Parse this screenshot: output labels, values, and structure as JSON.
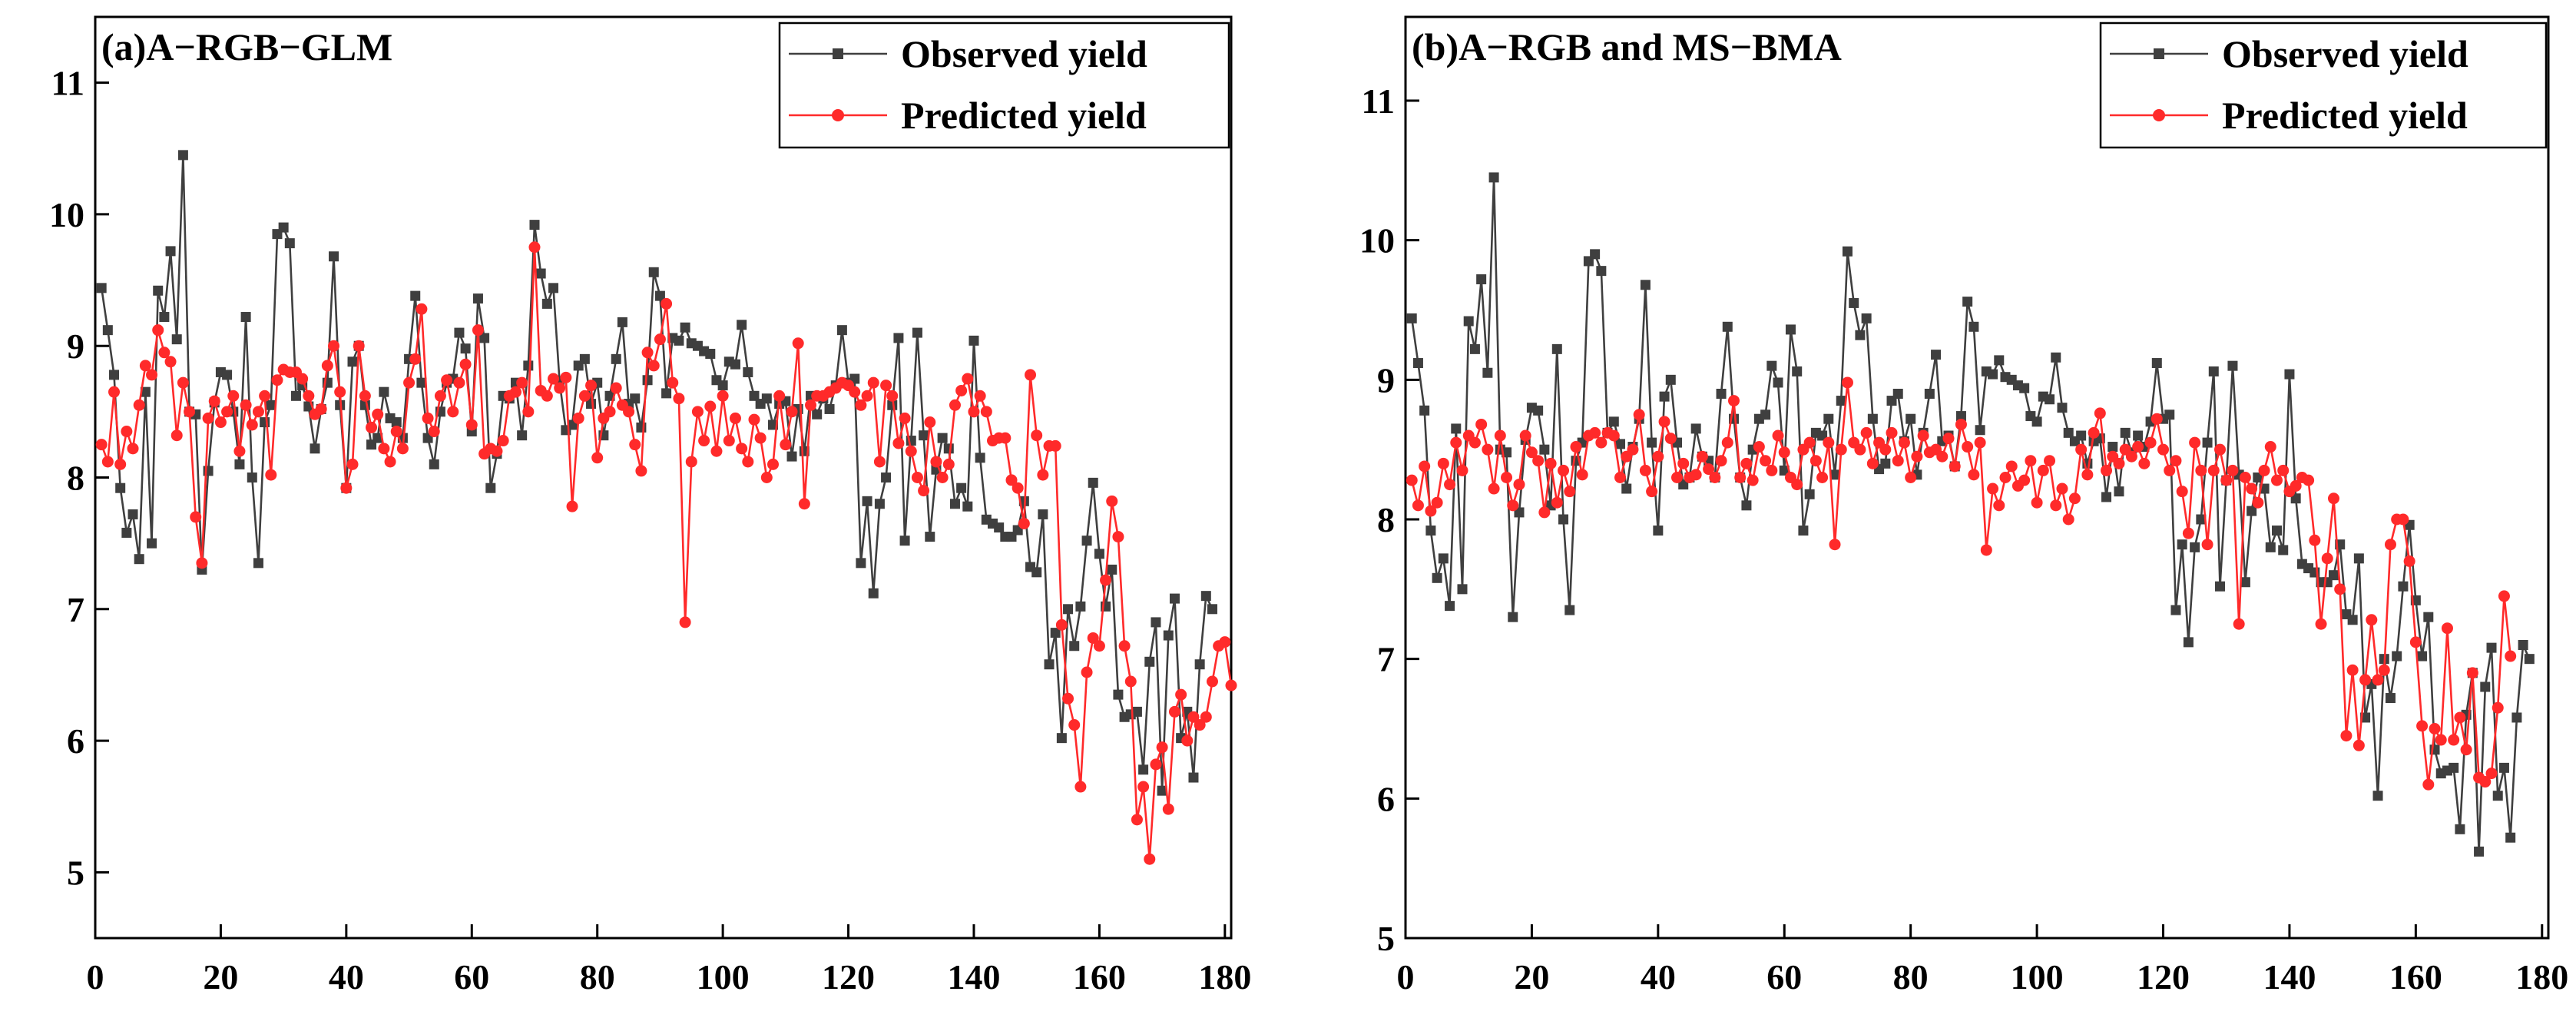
{
  "colors": {
    "observed": "#3f3f3f",
    "predicted": "#ff2a2a",
    "axis": "#000000"
  },
  "chart_data": [
    {
      "type": "line",
      "title": "(a)A−RGB−GLM",
      "xlabel": "",
      "ylabel": "",
      "xlim": [
        0,
        181
      ],
      "ylim": [
        4.5,
        11.5
      ],
      "xticks": [
        0,
        20,
        40,
        60,
        80,
        100,
        120,
        140,
        160,
        180
      ],
      "yticks": [
        5,
        6,
        7,
        8,
        9,
        10,
        11
      ],
      "legend_position": "top-right",
      "series": [
        {
          "name": "Observed yield",
          "marker": "square",
          "values": [
            9.44,
            9.12,
            8.78,
            7.92,
            7.58,
            7.72,
            7.38,
            8.65,
            7.5,
            9.42,
            9.22,
            9.72,
            9.05,
            10.45,
            8.5,
            8.48,
            7.3,
            8.05,
            8.57,
            8.8,
            8.78,
            8.5,
            8.1,
            9.22,
            8.0,
            7.35,
            8.42,
            8.55,
            9.85,
            9.9,
            9.78,
            8.62,
            8.7,
            8.54,
            8.22,
            8.52,
            8.72,
            9.68,
            8.55,
            7.92,
            8.88,
            9.0,
            8.55,
            8.25,
            8.3,
            8.65,
            8.45,
            8.42,
            8.3,
            8.9,
            9.38,
            8.72,
            8.3,
            8.1,
            8.5,
            8.72,
            8.75,
            9.1,
            8.98,
            8.35,
            9.36,
            9.06,
            7.92,
            8.18,
            8.62,
            8.6,
            8.72,
            8.32,
            8.85,
            9.92,
            9.55,
            9.32,
            9.44,
            8.72,
            8.36,
            8.4,
            8.85,
            8.9,
            8.56,
            8.72,
            8.32,
            8.62,
            8.9,
            9.18,
            8.56,
            8.6,
            8.38,
            8.74,
            9.56,
            9.38,
            8.64,
            9.06,
            9.04,
            9.14,
            9.02,
            9.0,
            8.96,
            8.94,
            8.74,
            8.7,
            8.88,
            8.86,
            9.16,
            8.8,
            8.62,
            8.56,
            8.6,
            8.4,
            8.56,
            8.58,
            8.16,
            8.52,
            8.2,
            8.62,
            8.48,
            8.6,
            8.52,
            8.7,
            9.12,
            8.72,
            8.75,
            7.35,
            7.82,
            7.12,
            7.8,
            8.0,
            8.55,
            9.06,
            7.52,
            8.28,
            9.1,
            8.32,
            7.55,
            8.06,
            8.3,
            8.22,
            7.8,
            7.92,
            7.78,
            9.04,
            8.15,
            7.68,
            7.65,
            7.62,
            7.55,
            7.55,
            7.6,
            7.82,
            7.32,
            7.28,
            7.72,
            6.58,
            6.82,
            6.02,
            7.0,
            6.72,
            7.02,
            7.52,
            7.96,
            7.42,
            7.02,
            7.3,
            6.35,
            6.18,
            6.2,
            6.22,
            5.78,
            6.6,
            6.9,
            5.62,
            6.8,
            7.08,
            6.02,
            6.22,
            5.72,
            6.58,
            7.1,
            7.0
          ]
        },
        {
          "name": "Predicted yield",
          "marker": "circle",
          "values": [
            8.25,
            8.12,
            8.65,
            8.1,
            8.35,
            8.22,
            8.55,
            8.85,
            8.78,
            9.12,
            8.95,
            8.88,
            8.32,
            8.72,
            8.5,
            7.7,
            7.35,
            8.45,
            8.58,
            8.42,
            8.5,
            8.62,
            8.2,
            8.55,
            8.4,
            8.5,
            8.62,
            8.02,
            8.74,
            8.82,
            8.8,
            8.8,
            8.75,
            8.62,
            8.48,
            8.52,
            8.85,
            9.0,
            8.65,
            7.92,
            8.1,
            9.0,
            8.62,
            8.38,
            8.48,
            8.22,
            8.12,
            8.35,
            8.22,
            8.72,
            8.9,
            9.28,
            8.45,
            8.35,
            8.62,
            8.74,
            8.5,
            8.72,
            8.86,
            8.4,
            9.12,
            8.18,
            8.22,
            8.2,
            8.28,
            8.62,
            8.65,
            8.72,
            8.5,
            9.75,
            8.66,
            8.62,
            8.75,
            8.68,
            8.76,
            7.78,
            8.45,
            8.62,
            8.7,
            8.15,
            8.45,
            8.5,
            8.68,
            8.55,
            8.5,
            8.25,
            8.05,
            8.95,
            8.85,
            9.05,
            9.32,
            8.72,
            8.6,
            6.9,
            8.12,
            8.5,
            8.28,
            8.54,
            8.2,
            8.62,
            8.28,
            8.45,
            8.22,
            8.12,
            8.44,
            8.3,
            8.0,
            8.1,
            8.62,
            8.25,
            8.5,
            9.02,
            7.8,
            8.55,
            8.62,
            8.62,
            8.65,
            8.68,
            8.72,
            8.7,
            8.65,
            8.55,
            8.62,
            8.72,
            8.12,
            8.7,
            8.62,
            8.26,
            8.45,
            8.2,
            8.0,
            7.9,
            8.42,
            8.12,
            8.0,
            8.1,
            8.55,
            8.66,
            8.75,
            8.5,
            8.62,
            8.5,
            8.28,
            8.3,
            8.3,
            7.98,
            7.92,
            7.65,
            8.78,
            8.32,
            8.02,
            8.24,
            8.24,
            6.88,
            6.32,
            6.12,
            5.65,
            6.52,
            6.78,
            6.72,
            7.22,
            7.82,
            7.55,
            6.72,
            6.45,
            5.4,
            5.65,
            5.1,
            5.82,
            5.95,
            5.48,
            6.22,
            6.35,
            6.0,
            6.18,
            6.12,
            6.18,
            6.45,
            6.72,
            6.75,
            6.42
          ]
        }
      ]
    },
    {
      "type": "line",
      "title": "(b)A−RGB and MS−BMA",
      "xlabel": "",
      "ylabel": "",
      "xlim": [
        0,
        181
      ],
      "ylim": [
        5,
        11.6
      ],
      "xticks": [
        0,
        20,
        40,
        60,
        80,
        100,
        120,
        140,
        160,
        180
      ],
      "yticks": [
        5,
        6,
        7,
        8,
        9,
        10,
        11
      ],
      "legend_position": "top-right",
      "series": [
        {
          "name": "Observed yield",
          "marker": "square",
          "values": [
            9.44,
            9.12,
            8.78,
            7.92,
            7.58,
            7.72,
            7.38,
            8.65,
            7.5,
            9.42,
            9.22,
            9.72,
            9.05,
            10.45,
            8.5,
            8.48,
            7.3,
            8.05,
            8.57,
            8.8,
            8.78,
            8.5,
            8.1,
            9.22,
            8.0,
            7.35,
            8.42,
            8.55,
            9.85,
            9.9,
            9.78,
            8.62,
            8.7,
            8.54,
            8.22,
            8.52,
            8.72,
            9.68,
            8.55,
            7.92,
            8.88,
            9.0,
            8.55,
            8.25,
            8.3,
            8.65,
            8.45,
            8.42,
            8.3,
            8.9,
            9.38,
            8.72,
            8.3,
            8.1,
            8.5,
            8.72,
            8.75,
            9.1,
            8.98,
            8.35,
            9.36,
            9.06,
            7.92,
            8.18,
            8.62,
            8.6,
            8.72,
            8.32,
            8.85,
            9.92,
            9.55,
            9.32,
            9.44,
            8.72,
            8.36,
            8.4,
            8.85,
            8.9,
            8.56,
            8.72,
            8.32,
            8.62,
            8.9,
            9.18,
            8.56,
            8.6,
            8.38,
            8.74,
            9.56,
            9.38,
            8.64,
            9.06,
            9.04,
            9.14,
            9.02,
            9.0,
            8.96,
            8.94,
            8.74,
            8.7,
            8.88,
            8.86,
            9.16,
            8.8,
            8.62,
            8.56,
            8.6,
            8.4,
            8.56,
            8.58,
            8.16,
            8.52,
            8.2,
            8.62,
            8.48,
            8.6,
            8.52,
            8.7,
            9.12,
            8.72,
            8.75,
            7.35,
            7.82,
            7.12,
            7.8,
            8.0,
            8.55,
            9.06,
            7.52,
            8.28,
            9.1,
            8.32,
            7.55,
            8.06,
            8.3,
            8.22,
            7.8,
            7.92,
            7.78,
            9.04,
            8.15,
            7.68,
            7.65,
            7.62,
            7.55,
            7.55,
            7.6,
            7.82,
            7.32,
            7.28,
            7.72,
            6.58,
            6.82,
            6.02,
            7.0,
            6.72,
            7.02,
            7.52,
            7.96,
            7.42,
            7.02,
            7.3,
            6.35,
            6.18,
            6.2,
            6.22,
            5.78,
            6.6,
            6.9,
            5.62,
            6.8,
            7.08,
            6.02,
            6.22,
            5.72,
            6.58,
            7.1,
            7.0
          ]
        },
        {
          "name": "Predicted yield",
          "marker": "circle",
          "values": [
            8.28,
            8.1,
            8.38,
            8.06,
            8.12,
            8.4,
            8.25,
            8.55,
            8.35,
            8.6,
            8.55,
            8.68,
            8.5,
            8.22,
            8.6,
            8.3,
            8.1,
            8.25,
            8.6,
            8.48,
            8.42,
            8.05,
            8.4,
            8.12,
            8.35,
            8.2,
            8.52,
            8.32,
            8.6,
            8.62,
            8.55,
            8.62,
            8.6,
            8.3,
            8.45,
            8.5,
            8.75,
            8.35,
            8.2,
            8.45,
            8.7,
            8.58,
            8.3,
            8.4,
            8.3,
            8.32,
            8.45,
            8.36,
            8.3,
            8.42,
            8.55,
            8.85,
            8.3,
            8.4,
            8.28,
            8.52,
            8.42,
            8.35,
            8.6,
            8.48,
            8.3,
            8.25,
            8.5,
            8.55,
            8.42,
            8.3,
            8.55,
            7.82,
            8.5,
            8.98,
            8.55,
            8.5,
            8.62,
            8.4,
            8.55,
            8.5,
            8.62,
            8.42,
            8.55,
            8.3,
            8.45,
            8.6,
            8.48,
            8.5,
            8.45,
            8.58,
            8.38,
            8.68,
            8.52,
            8.32,
            8.55,
            7.78,
            8.22,
            8.1,
            8.3,
            8.38,
            8.24,
            8.28,
            8.42,
            8.12,
            8.35,
            8.42,
            8.1,
            8.22,
            8.0,
            8.15,
            8.5,
            8.32,
            8.62,
            8.76,
            8.35,
            8.45,
            8.4,
            8.5,
            8.45,
            8.52,
            8.4,
            8.55,
            8.72,
            8.5,
            8.35,
            8.42,
            8.2,
            7.9,
            8.55,
            8.35,
            7.82,
            8.35,
            8.5,
            8.28,
            8.35,
            7.25,
            8.3,
            8.22,
            8.12,
            8.35,
            8.52,
            8.28,
            8.35,
            8.2,
            8.24,
            8.3,
            8.28,
            7.85,
            7.25,
            7.72,
            8.15,
            7.5,
            6.45,
            6.92,
            6.38,
            6.85,
            7.28,
            6.85,
            6.92,
            7.82,
            8.0,
            8.0,
            7.7,
            7.12,
            6.52,
            6.1,
            6.5,
            6.42,
            7.22,
            6.42,
            6.58,
            6.35,
            6.9,
            6.15,
            6.12,
            6.18,
            6.65,
            7.45,
            7.02
          ]
        }
      ]
    }
  ]
}
